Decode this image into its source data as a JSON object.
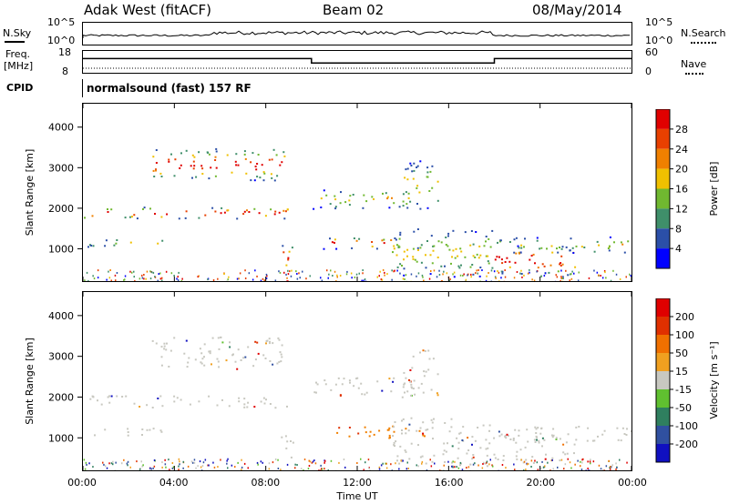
{
  "header": {
    "station": "Adak West (fitACF)",
    "beam": "Beam 02",
    "date": "08/May/2014"
  },
  "noise_panel": {
    "left_label": "N.Sky",
    "left_ticks": [
      "10^5",
      "10^0"
    ],
    "right_label": "N.Search",
    "right_ticks": [
      "10^5",
      "10^0"
    ]
  },
  "freq_panel": {
    "left_label_line1": "Freq.",
    "left_label_line2": "[MHz]",
    "left_ticks": [
      "18",
      "8"
    ],
    "right_label": "Nave",
    "right_ticks": [
      "60",
      "0"
    ],
    "freq_steps": [
      {
        "from": 0,
        "to": 10,
        "level": 0.35
      },
      {
        "from": 10,
        "to": 18,
        "level": 0.55
      },
      {
        "from": 18,
        "to": 24,
        "level": 0.35
      }
    ]
  },
  "cpid": {
    "label": "CPID",
    "program": "normalsound (fast) 157 RF"
  },
  "chart_data": [
    {
      "type": "heatmap",
      "name": "Power",
      "ylabel": "Slant Range [km]",
      "y_ticks": [
        1000,
        2000,
        3000,
        4000
      ],
      "ylim": [
        180,
        4600
      ],
      "x_ticks": [
        "00:00",
        "04:00",
        "08:00",
        "12:00",
        "16:00",
        "20:00",
        "00:00"
      ],
      "xlim_hours": [
        0,
        24
      ],
      "colorbar": {
        "label": "Power [dB]",
        "ticks": [
          "4",
          "8",
          "12",
          "16",
          "20",
          "24",
          "28"
        ],
        "colors": [
          "#0000ff",
          "#2b4fa8",
          "#3f8f6a",
          "#70b830",
          "#f0c000",
          "#f08000",
          "#e84000",
          "#e00000"
        ]
      }
    },
    {
      "type": "heatmap",
      "name": "Velocity",
      "ylabel": "Slant Range [km]",
      "y_ticks": [
        1000,
        2000,
        3000,
        4000
      ],
      "ylim": [
        180,
        4600
      ],
      "x_ticks": [
        "00:00",
        "04:00",
        "08:00",
        "12:00",
        "16:00",
        "20:00",
        "00:00"
      ],
      "xlim_hours": [
        0,
        24
      ],
      "xlabel": "Time UT",
      "colorbar": {
        "label": "Velocity [m s⁻¹]",
        "ticks": [
          "200",
          "100",
          "50",
          "15",
          "-15",
          "-50",
          "-100",
          "-200"
        ],
        "colors": [
          "#1010c0",
          "#3050a0",
          "#2f7f5f",
          "#60c030",
          "#c8c8c0",
          "#f0a020",
          "#f07000",
          "#e03000",
          "#e00000"
        ]
      }
    }
  ],
  "scatter_bands": [
    {
      "t0": 0.0,
      "t1": 9.0,
      "r0": 1750,
      "r1": 2050,
      "core": true
    },
    {
      "t0": 0.0,
      "t1": 3.5,
      "r0": 1050,
      "r1": 1250,
      "core": false
    },
    {
      "t0": 3.0,
      "t1": 8.8,
      "r0": 2700,
      "r1": 3500,
      "core": true
    },
    {
      "t0": 8.5,
      "t1": 9.2,
      "r0": 500,
      "r1": 1100,
      "core": true
    },
    {
      "t0": 10.0,
      "t1": 14.5,
      "r0": 2000,
      "r1": 2500,
      "core": false
    },
    {
      "t0": 10.5,
      "t1": 15.0,
      "r0": 1000,
      "r1": 1300,
      "core": true
    },
    {
      "t0": 13.5,
      "t1": 18.0,
      "r0": 300,
      "r1": 1500,
      "core": false
    },
    {
      "t0": 18.0,
      "t1": 21.6,
      "r0": 350,
      "r1": 1100,
      "core": true
    },
    {
      "t0": 18.0,
      "t1": 24.0,
      "r0": 900,
      "r1": 1300,
      "core": false
    },
    {
      "t0": 14.0,
      "t1": 15.5,
      "r0": 2000,
      "r1": 3200,
      "core": false
    }
  ]
}
